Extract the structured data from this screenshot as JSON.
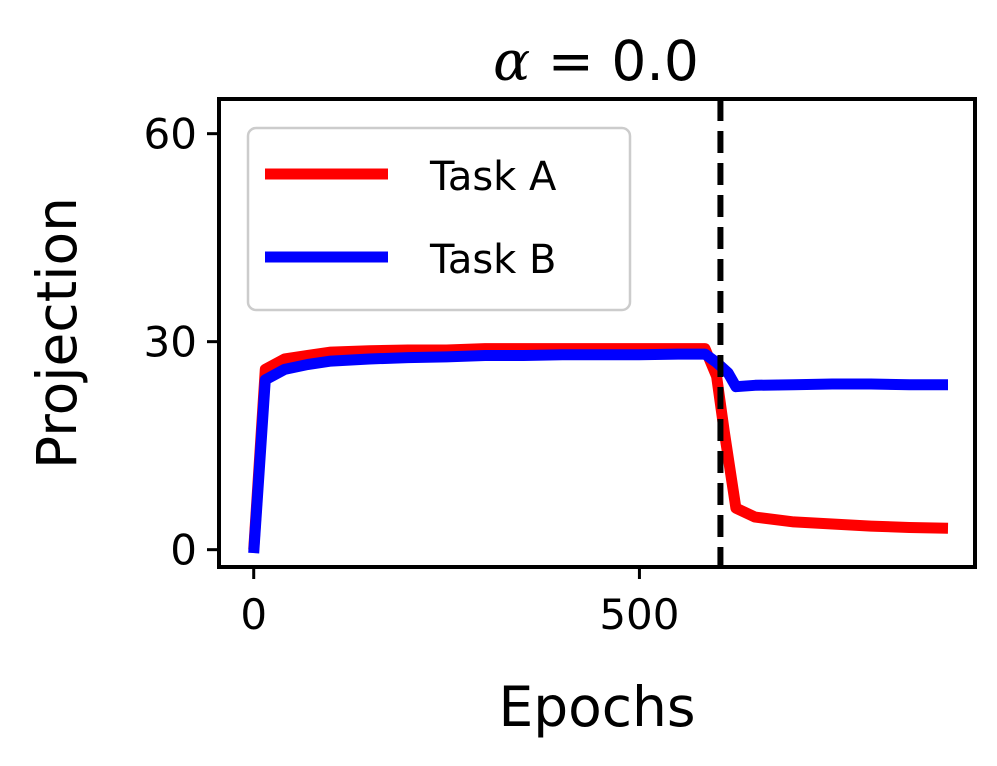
{
  "chart_data": {
    "type": "line",
    "title": {
      "symbol": "α",
      "rest": " = 0.0"
    },
    "xlabel": "Epochs",
    "ylabel": "Projection",
    "xlim": [
      -45,
      935
    ],
    "ylim": [
      -2.5,
      65
    ],
    "xticks": [
      {
        "value": 0,
        "label": "0"
      },
      {
        "value": 500,
        "label": "500"
      }
    ],
    "yticks": [
      {
        "value": 0,
        "label": "0"
      },
      {
        "value": 30,
        "label": "30"
      },
      {
        "value": 60,
        "label": "60"
      }
    ],
    "vline": {
      "x": 605,
      "style": "dashed",
      "color": "#000000"
    },
    "legend": {
      "position": "top-left"
    },
    "grid": false,
    "series": [
      {
        "name": "Task A",
        "color": "#ff0000",
        "x": [
          0,
          15,
          40,
          70,
          100,
          150,
          200,
          250,
          300,
          350,
          400,
          450,
          500,
          550,
          585,
          600,
          610,
          625,
          650,
          700,
          750,
          800,
          850,
          900
        ],
        "y": [
          0,
          26,
          27.5,
          28,
          28.5,
          28.7,
          28.8,
          28.8,
          29,
          29,
          29,
          29,
          29,
          29,
          29,
          25,
          17,
          6,
          4.7,
          4,
          3.7,
          3.4,
          3.2,
          3.1
        ]
      },
      {
        "name": "Task B",
        "color": "#0000ff",
        "x": [
          0,
          15,
          40,
          70,
          100,
          150,
          200,
          250,
          300,
          350,
          400,
          450,
          500,
          550,
          585,
          600,
          615,
          625,
          650,
          700,
          750,
          800,
          850,
          900
        ],
        "y": [
          -0.5,
          24.5,
          26,
          26.7,
          27.2,
          27.5,
          27.7,
          27.8,
          28,
          28,
          28.1,
          28.1,
          28.1,
          28.2,
          28.2,
          27,
          25.5,
          23.5,
          23.7,
          23.8,
          23.9,
          23.9,
          23.8,
          23.8
        ]
      }
    ]
  }
}
